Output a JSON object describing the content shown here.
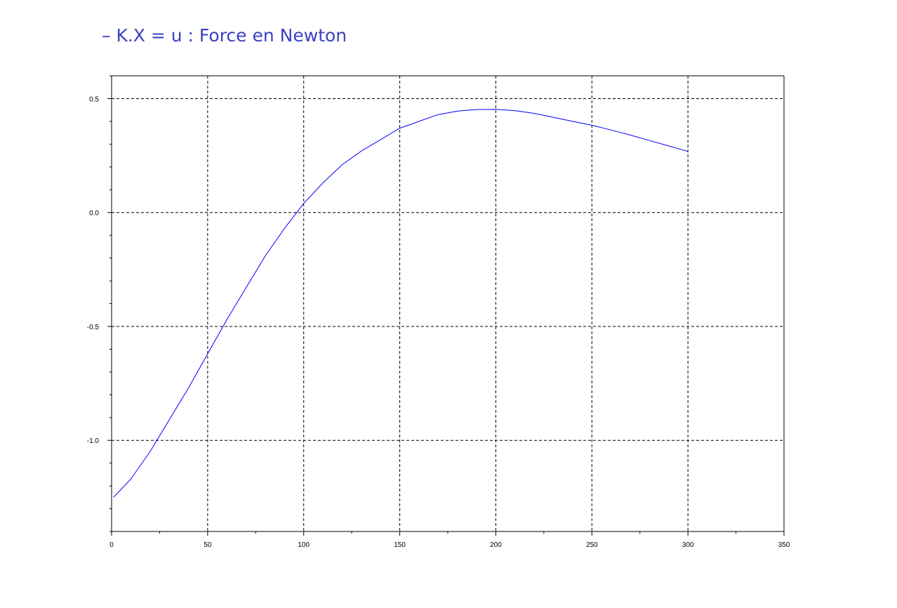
{
  "chart_data": {
    "type": "line",
    "title": "",
    "xlabel": "",
    "ylabel": "",
    "xlim": [
      0,
      350
    ],
    "ylim": [
      -1.4,
      0.6
    ],
    "grid": true,
    "grid_style": "dashed",
    "legend": {
      "position": "top-left",
      "marker": "–",
      "text": "K.X = u : Force en Newton"
    },
    "x_ticks": [
      0,
      50,
      100,
      150,
      200,
      250,
      300,
      350
    ],
    "x_tick_labels": [
      "0",
      "50",
      "100",
      "150",
      "200",
      "250",
      "300",
      "350"
    ],
    "y_ticks": [
      -1.0,
      -0.5,
      0.0,
      0.5
    ],
    "y_tick_labels": [
      "-1.0",
      "-0.5",
      "0.0",
      "0.5"
    ],
    "series": [
      {
        "name": "K.X = u : Force en Newton",
        "color": "#0000ff",
        "x": [
          1,
          10,
          20,
          30,
          40,
          50,
          60,
          70,
          80,
          90,
          100,
          110,
          120,
          130,
          140,
          150,
          160,
          170,
          180,
          190,
          200,
          210,
          220,
          230,
          240,
          250,
          260,
          270,
          280,
          290,
          300
        ],
        "y": [
          -1.25,
          -1.17,
          -1.05,
          -0.91,
          -0.77,
          -0.62,
          -0.47,
          -0.33,
          -0.19,
          -0.07,
          0.04,
          0.13,
          0.21,
          0.27,
          0.32,
          0.37,
          0.4,
          0.43,
          0.445,
          0.452,
          0.453,
          0.447,
          0.435,
          0.418,
          0.4,
          0.383,
          0.362,
          0.34,
          0.316,
          0.292,
          0.268
        ]
      }
    ]
  }
}
